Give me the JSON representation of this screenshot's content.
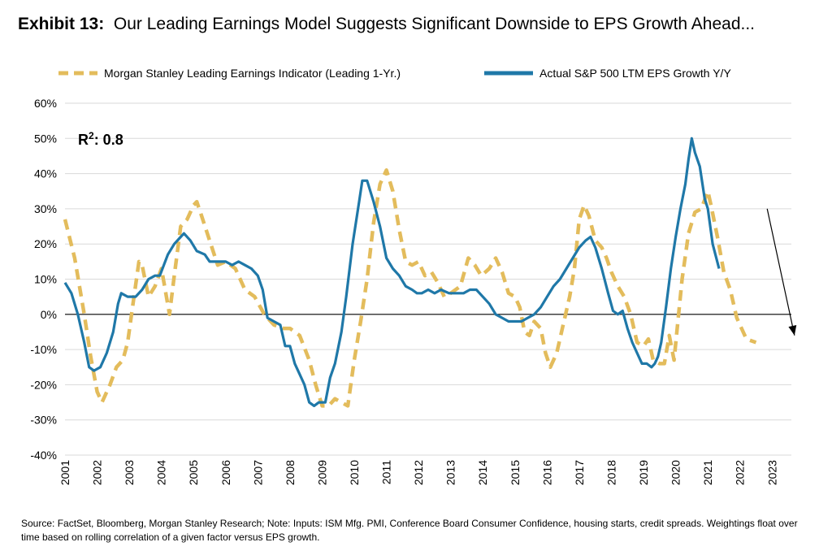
{
  "title": {
    "lead": "Exhibit 13:",
    "text": "Our Leading Earnings Model Suggests Significant Downside to EPS Growth Ahead..."
  },
  "footnote": "Source: FactSet, Bloomberg, Morgan Stanley Research; Note: Inputs: ISM Mfg. PMI, Conference Board Consumer Confidence, housing starts, credit spreads. Weightings float over time based on rolling correlation of a given factor versus EPS growth.",
  "colors": {
    "leading": "#e3bc5c",
    "actual": "#1f78a8",
    "grid": "#d9d9d9"
  },
  "chart_data": {
    "type": "line",
    "ylim": [
      -40,
      60
    ],
    "yticks": [
      "60%",
      "50%",
      "40%",
      "30%",
      "20%",
      "10%",
      "0%",
      "-10%",
      "-20%",
      "-30%",
      "-40%"
    ],
    "xlim": [
      2001.0,
      2023.6
    ],
    "xticks": [
      "2001",
      "2002",
      "2003",
      "2004",
      "2005",
      "2006",
      "2007",
      "2008",
      "2009",
      "2010",
      "2011",
      "2012",
      "2013",
      "2014",
      "2015",
      "2016",
      "2017",
      "2018",
      "2019",
      "2020",
      "2021",
      "2022",
      "2023"
    ],
    "grid": true,
    "legend_position": "top",
    "annotation": {
      "base": "R",
      "sup": "2",
      "rest": ": 0.8"
    },
    "trend_arrow": {
      "from": [
        2023.1,
        30
      ],
      "to": [
        2023.9,
        -6
      ]
    },
    "series": [
      {
        "name": "Morgan Stanley Leading Earnings Indicator (Leading 1-Yr.)",
        "style": "dashed",
        "points": [
          [
            2001.0,
            27
          ],
          [
            2001.3,
            16
          ],
          [
            2001.6,
            0
          ],
          [
            2001.8,
            -12
          ],
          [
            2002.0,
            -22
          ],
          [
            2002.15,
            -25
          ],
          [
            2002.4,
            -20
          ],
          [
            2002.6,
            -15
          ],
          [
            2002.8,
            -13
          ],
          [
            2002.95,
            -8
          ],
          [
            2003.1,
            2
          ],
          [
            2003.3,
            15
          ],
          [
            2003.4,
            14
          ],
          [
            2003.6,
            5
          ],
          [
            2003.8,
            8
          ],
          [
            2004.0,
            13
          ],
          [
            2004.1,
            8
          ],
          [
            2004.25,
            0
          ],
          [
            2004.4,
            11
          ],
          [
            2004.6,
            25
          ],
          [
            2004.8,
            27
          ],
          [
            2005.0,
            31
          ],
          [
            2005.1,
            32
          ],
          [
            2005.25,
            28
          ],
          [
            2005.5,
            21
          ],
          [
            2005.75,
            14
          ],
          [
            2006.0,
            15
          ],
          [
            2006.3,
            13
          ],
          [
            2006.6,
            7
          ],
          [
            2006.9,
            5
          ],
          [
            2007.2,
            0
          ],
          [
            2007.5,
            -3
          ],
          [
            2007.8,
            -4
          ],
          [
            2008.0,
            -4
          ],
          [
            2008.3,
            -6
          ],
          [
            2008.6,
            -13
          ],
          [
            2008.8,
            -20
          ],
          [
            2009.0,
            -26
          ],
          [
            2009.2,
            -26
          ],
          [
            2009.4,
            -24
          ],
          [
            2009.6,
            -25
          ],
          [
            2009.8,
            -26
          ],
          [
            2010.0,
            -13
          ],
          [
            2010.2,
            -2
          ],
          [
            2010.4,
            10
          ],
          [
            2010.6,
            26
          ],
          [
            2010.8,
            37
          ],
          [
            2011.0,
            41
          ],
          [
            2011.2,
            35
          ],
          [
            2011.4,
            24
          ],
          [
            2011.6,
            15
          ],
          [
            2011.8,
            14
          ],
          [
            2012.0,
            15
          ],
          [
            2012.2,
            11
          ],
          [
            2012.4,
            12
          ],
          [
            2012.6,
            9
          ],
          [
            2012.8,
            5
          ],
          [
            2013.0,
            6
          ],
          [
            2013.3,
            8
          ],
          [
            2013.55,
            16
          ],
          [
            2013.75,
            14
          ],
          [
            2013.95,
            11
          ],
          [
            2014.2,
            13
          ],
          [
            2014.4,
            16
          ],
          [
            2014.6,
            12
          ],
          [
            2014.8,
            6
          ],
          [
            2015.0,
            5
          ],
          [
            2015.15,
            2
          ],
          [
            2015.3,
            -5
          ],
          [
            2015.45,
            -6
          ],
          [
            2015.6,
            -2
          ],
          [
            2015.8,
            -4
          ],
          [
            2015.95,
            -11
          ],
          [
            2016.1,
            -15
          ],
          [
            2016.3,
            -11
          ],
          [
            2016.5,
            -3
          ],
          [
            2016.7,
            5
          ],
          [
            2016.85,
            13
          ],
          [
            2017.0,
            27
          ],
          [
            2017.15,
            31
          ],
          [
            2017.3,
            28
          ],
          [
            2017.5,
            21
          ],
          [
            2017.7,
            19
          ],
          [
            2017.85,
            16
          ],
          [
            2018.0,
            12
          ],
          [
            2018.2,
            8
          ],
          [
            2018.4,
            5
          ],
          [
            2018.6,
            0
          ],
          [
            2018.8,
            -8
          ],
          [
            2019.0,
            -9
          ],
          [
            2019.15,
            -7
          ],
          [
            2019.3,
            -13
          ],
          [
            2019.5,
            -14
          ],
          [
            2019.65,
            -14
          ],
          [
            2019.8,
            -6
          ],
          [
            2019.95,
            -13
          ],
          [
            2020.2,
            10
          ],
          [
            2020.4,
            23
          ],
          [
            2020.6,
            29
          ],
          [
            2020.8,
            30
          ],
          [
            2021.0,
            35
          ],
          [
            2021.1,
            31
          ],
          [
            2021.3,
            22
          ],
          [
            2021.5,
            12
          ],
          [
            2021.7,
            7
          ],
          [
            2021.9,
            -1
          ],
          [
            2022.2,
            -7
          ],
          [
            2022.5,
            -8
          ]
        ]
      },
      {
        "name": "Actual S&P 500 LTM EPS Growth Y/Y",
        "style": "solid",
        "points": [
          [
            2001.0,
            9
          ],
          [
            2001.2,
            6
          ],
          [
            2001.4,
            0
          ],
          [
            2001.6,
            -8
          ],
          [
            2001.75,
            -15
          ],
          [
            2001.9,
            -16
          ],
          [
            2002.1,
            -15
          ],
          [
            2002.3,
            -11
          ],
          [
            2002.5,
            -5
          ],
          [
            2002.65,
            3
          ],
          [
            2002.75,
            6
          ],
          [
            2002.95,
            5
          ],
          [
            2003.2,
            5
          ],
          [
            2003.4,
            7
          ],
          [
            2003.6,
            10
          ],
          [
            2003.8,
            11
          ],
          [
            2003.95,
            11
          ],
          [
            2004.2,
            17
          ],
          [
            2004.4,
            20
          ],
          [
            2004.6,
            22
          ],
          [
            2004.7,
            23
          ],
          [
            2004.9,
            21
          ],
          [
            2005.1,
            18
          ],
          [
            2005.35,
            17
          ],
          [
            2005.5,
            15
          ],
          [
            2005.75,
            15
          ],
          [
            2006.0,
            15
          ],
          [
            2006.2,
            14
          ],
          [
            2006.4,
            15
          ],
          [
            2006.6,
            14
          ],
          [
            2006.8,
            13
          ],
          [
            2007.0,
            11
          ],
          [
            2007.15,
            7
          ],
          [
            2007.3,
            -1
          ],
          [
            2007.5,
            -2
          ],
          [
            2007.7,
            -3
          ],
          [
            2007.85,
            -9
          ],
          [
            2008.0,
            -9
          ],
          [
            2008.15,
            -14
          ],
          [
            2008.3,
            -17
          ],
          [
            2008.45,
            -20
          ],
          [
            2008.6,
            -25
          ],
          [
            2008.75,
            -26
          ],
          [
            2008.9,
            -25
          ],
          [
            2009.0,
            -25
          ],
          [
            2009.1,
            -25
          ],
          [
            2009.25,
            -18
          ],
          [
            2009.4,
            -14
          ],
          [
            2009.6,
            -5
          ],
          [
            2009.75,
            5
          ],
          [
            2009.95,
            20
          ],
          [
            2010.15,
            32
          ],
          [
            2010.25,
            38
          ],
          [
            2010.4,
            38
          ],
          [
            2010.6,
            32
          ],
          [
            2010.8,
            25
          ],
          [
            2011.0,
            16
          ],
          [
            2011.2,
            13
          ],
          [
            2011.4,
            11
          ],
          [
            2011.6,
            8
          ],
          [
            2011.8,
            7
          ],
          [
            2011.95,
            6
          ],
          [
            2012.1,
            6
          ],
          [
            2012.3,
            7
          ],
          [
            2012.5,
            6
          ],
          [
            2012.7,
            7
          ],
          [
            2012.95,
            6
          ],
          [
            2013.2,
            6
          ],
          [
            2013.4,
            6
          ],
          [
            2013.6,
            7
          ],
          [
            2013.8,
            7
          ],
          [
            2014.0,
            5
          ],
          [
            2014.2,
            3
          ],
          [
            2014.4,
            0
          ],
          [
            2014.6,
            -1
          ],
          [
            2014.8,
            -2
          ],
          [
            2015.0,
            -2
          ],
          [
            2015.2,
            -2
          ],
          [
            2015.4,
            -1
          ],
          [
            2015.6,
            0
          ],
          [
            2015.8,
            2
          ],
          [
            2016.0,
            5
          ],
          [
            2016.2,
            8
          ],
          [
            2016.4,
            10
          ],
          [
            2016.6,
            13
          ],
          [
            2016.8,
            16
          ],
          [
            2017.0,
            19
          ],
          [
            2017.2,
            21
          ],
          [
            2017.35,
            22
          ],
          [
            2017.5,
            19
          ],
          [
            2017.7,
            13
          ],
          [
            2017.9,
            6
          ],
          [
            2018.05,
            1
          ],
          [
            2018.2,
            0
          ],
          [
            2018.35,
            1
          ],
          [
            2018.5,
            -4
          ],
          [
            2018.65,
            -8
          ],
          [
            2018.8,
            -11
          ],
          [
            2018.95,
            -14
          ],
          [
            2019.1,
            -14
          ],
          [
            2019.25,
            -15
          ],
          [
            2019.35,
            -14
          ],
          [
            2019.45,
            -12
          ],
          [
            2019.55,
            -8
          ],
          [
            2019.7,
            2
          ],
          [
            2019.85,
            13
          ],
          [
            2020.0,
            22
          ],
          [
            2020.15,
            30
          ],
          [
            2020.3,
            37
          ],
          [
            2020.4,
            44
          ],
          [
            2020.5,
            50
          ],
          [
            2020.6,
            46
          ],
          [
            2020.75,
            42
          ],
          [
            2020.9,
            33
          ],
          [
            2021.0,
            30
          ],
          [
            2021.15,
            20
          ],
          [
            2021.35,
            13
          ]
        ]
      }
    ]
  }
}
